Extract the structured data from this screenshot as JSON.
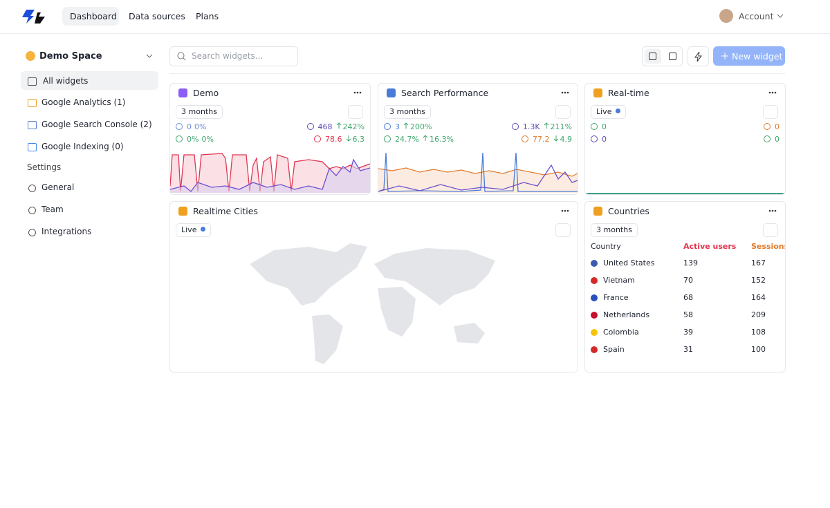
{
  "nav": {
    "tabs": [
      "Dashboard",
      "Data sources",
      "Plans"
    ],
    "account": "Account"
  },
  "sidebar": {
    "space": "Demo Space",
    "items": [
      "All widgets",
      "Google Analytics (1)",
      "Google Search Console (2)",
      "Google Indexing (0)"
    ],
    "settings_title": "Settings",
    "settings": [
      "General",
      "Team",
      "Integrations"
    ]
  },
  "toolbar": {
    "search_placeholder": "Search widgets...",
    "new_widget": "New widget"
  },
  "widgets": [
    {
      "title": "Demo",
      "period": "3 months",
      "icon": "#8b5cf6",
      "stats": [
        {
          "left": [
            {
              "text": "0",
              "color": "#6b8fd6"
            },
            {
              "text": "0%",
              "color": "#6b8fd6"
            }
          ],
          "right": [
            {
              "text": "468",
              "color": "#5b4bb7"
            },
            {
              "text": "242%",
              "color": "#3fa66b",
              "trend": "up"
            }
          ]
        },
        {
          "left": [
            {
              "text": "0%",
              "color": "#3fa66b"
            },
            {
              "text": "0%",
              "color": "#3fa66b"
            }
          ],
          "right": [
            {
              "text": "78.6",
              "color": "#e0364f"
            },
            {
              "text": "6.3",
              "color": "#3fa66b",
              "trend": "down"
            }
          ]
        }
      ]
    },
    {
      "title": "Search Performance",
      "period": "3 months",
      "icon": "#4a7bd8",
      "stats": [
        {
          "left": [
            {
              "text": "3",
              "color": "#4a7bd8"
            },
            {
              "text": "200%",
              "color": "#3fa66b",
              "trend": "up"
            }
          ],
          "right": [
            {
              "text": "1.3K",
              "color": "#5b4bb7"
            },
            {
              "text": "211%",
              "color": "#3fa66b",
              "trend": "up"
            }
          ]
        },
        {
          "left": [
            {
              "text": "24.7%",
              "color": "#3fa66b"
            },
            {
              "text": "16.3%",
              "color": "#3fa66b",
              "trend": "up"
            }
          ],
          "right": [
            {
              "text": "77.2",
              "color": "#e07b2c"
            },
            {
              "text": "4.9",
              "color": "#3fa66b",
              "trend": "down"
            }
          ]
        }
      ]
    },
    {
      "title": "Real-time",
      "period": "Live",
      "icon": "#f0a020",
      "stats": [
        {
          "left": [
            {
              "text": "0",
              "color": "#3fa66b"
            }
          ],
          "right": [
            {
              "text": "0",
              "color": "#e07b2c"
            }
          ]
        },
        {
          "left": [
            {
              "text": "0",
              "color": "#5b4bb7"
            }
          ],
          "right": [
            {
              "text": "0",
              "color": "#3fa66b"
            }
          ]
        }
      ]
    },
    {
      "title": "Realtime Cities",
      "period": "Live",
      "icon": "#f0a020"
    },
    {
      "title": "Countries",
      "period": "3 months",
      "icon": "#f0a020"
    }
  ],
  "countries": {
    "columns": [
      "Country",
      "Active users",
      "Sessions"
    ],
    "rows": [
      [
        "United States",
        "139",
        "167"
      ],
      [
        "Vietnam",
        "70",
        "152"
      ],
      [
        "France",
        "68",
        "164"
      ],
      [
        "Netherlands",
        "58",
        "209"
      ],
      [
        "Colombia",
        "39",
        "108"
      ],
      [
        "Spain",
        "31",
        "100"
      ]
    ]
  }
}
